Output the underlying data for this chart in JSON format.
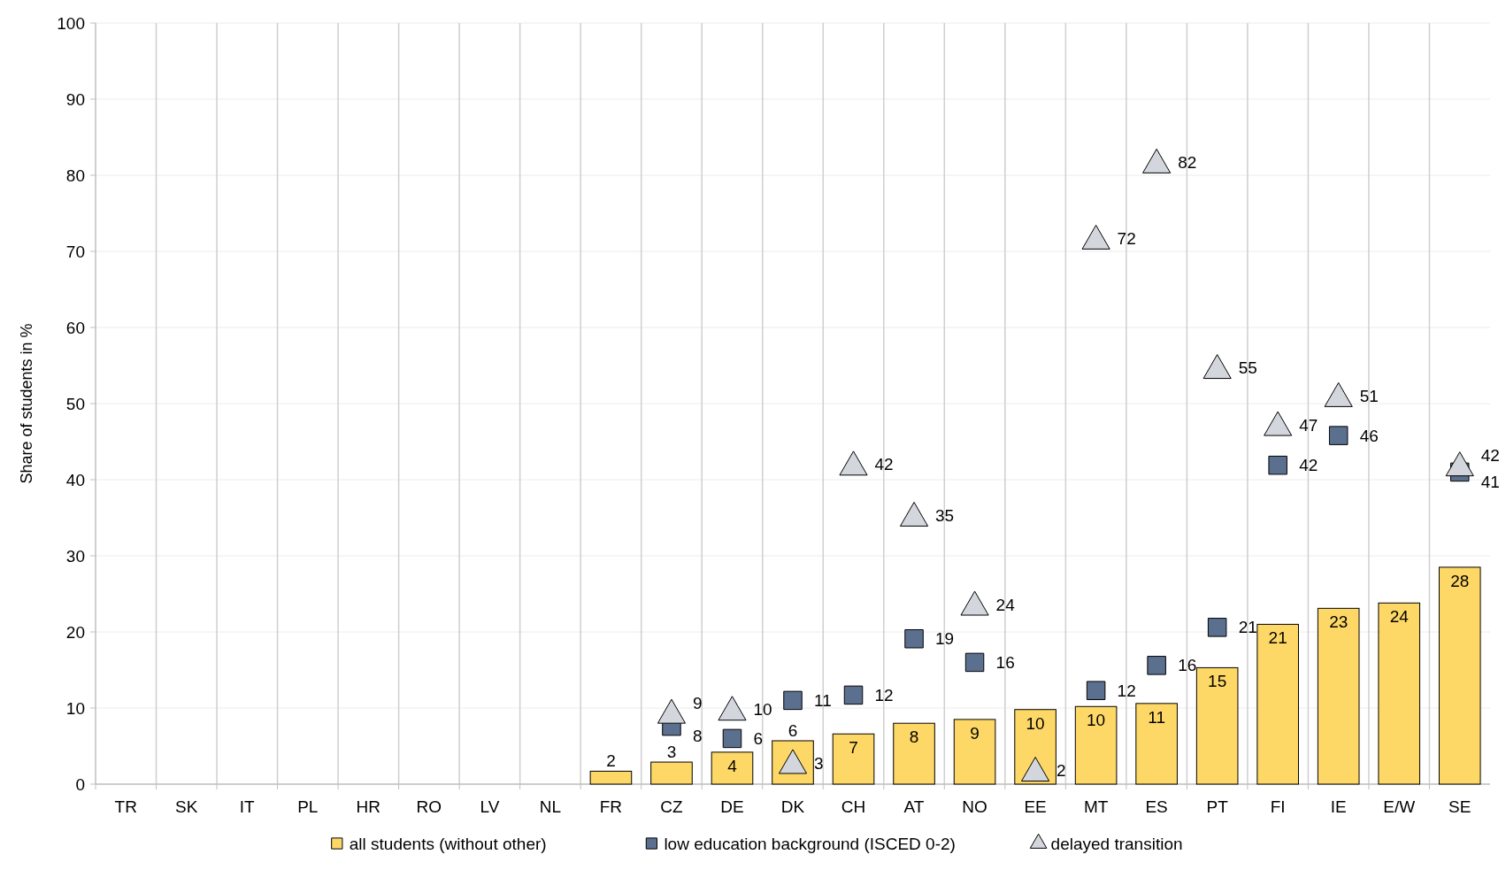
{
  "chart_data": {
    "type": "bar",
    "ylabel": "Share of students in %",
    "categories": [
      "TR",
      "SK",
      "IT",
      "PL",
      "HR",
      "RO",
      "LV",
      "NL",
      "FR",
      "CZ",
      "DE",
      "DK",
      "CH",
      "AT",
      "NO",
      "EE",
      "MT",
      "ES",
      "PT",
      "FI",
      "IE",
      "E/W",
      "SE"
    ],
    "series": [
      {
        "name": "all students (without other)",
        "color": "#fdd866",
        "values": [
          null,
          null,
          null,
          null,
          null,
          null,
          null,
          null,
          1.7,
          2.9,
          4.2,
          5.7,
          6.6,
          8.0,
          8.5,
          9.8,
          10.2,
          10.6,
          15.3,
          21.0,
          23.1,
          23.8,
          28.5
        ],
        "value_labels": [
          null,
          null,
          null,
          null,
          null,
          null,
          null,
          null,
          "2",
          "3",
          "4",
          "6",
          "7",
          "8",
          "9",
          "10",
          "10",
          "11",
          "15",
          "21",
          "23",
          "24",
          "28"
        ]
      },
      {
        "name": "low education background (ISCED 0-2)",
        "type": "scatter",
        "marker": "square",
        "color": "#5b6f8f",
        "values": [
          null,
          null,
          null,
          null,
          null,
          null,
          null,
          null,
          null,
          7.6,
          6.0,
          11.0,
          11.7,
          19.1,
          16.0,
          null,
          12.3,
          15.6,
          20.6,
          41.9,
          45.8,
          null,
          41.0
        ],
        "value_labels": [
          null,
          null,
          null,
          null,
          null,
          null,
          null,
          null,
          null,
          "8",
          "6",
          "11",
          "12",
          "19",
          "16",
          null,
          "12",
          "16",
          "21",
          "42",
          "46",
          null,
          "41"
        ]
      },
      {
        "name": "delayed transition",
        "type": "scatter",
        "marker": "triangle",
        "color": "#d3d6dd",
        "values": [
          null,
          null,
          null,
          null,
          null,
          null,
          null,
          null,
          null,
          9.4,
          9.8,
          2.8,
          42.0,
          35.3,
          23.6,
          1.8,
          71.7,
          81.7,
          54.7,
          47.2,
          51.0,
          null,
          41.9
        ],
        "value_labels": [
          null,
          null,
          null,
          null,
          null,
          null,
          null,
          null,
          null,
          "9",
          "10",
          "3",
          "42",
          "35",
          "24",
          "2",
          "72",
          "82",
          "55",
          "47",
          "51",
          null,
          "42"
        ]
      }
    ],
    "ylim": [
      0,
      100
    ],
    "yticks": [
      0,
      10,
      20,
      30,
      40,
      50,
      60,
      70,
      80,
      90,
      100
    ],
    "grid": true,
    "legend": "bottom"
  }
}
